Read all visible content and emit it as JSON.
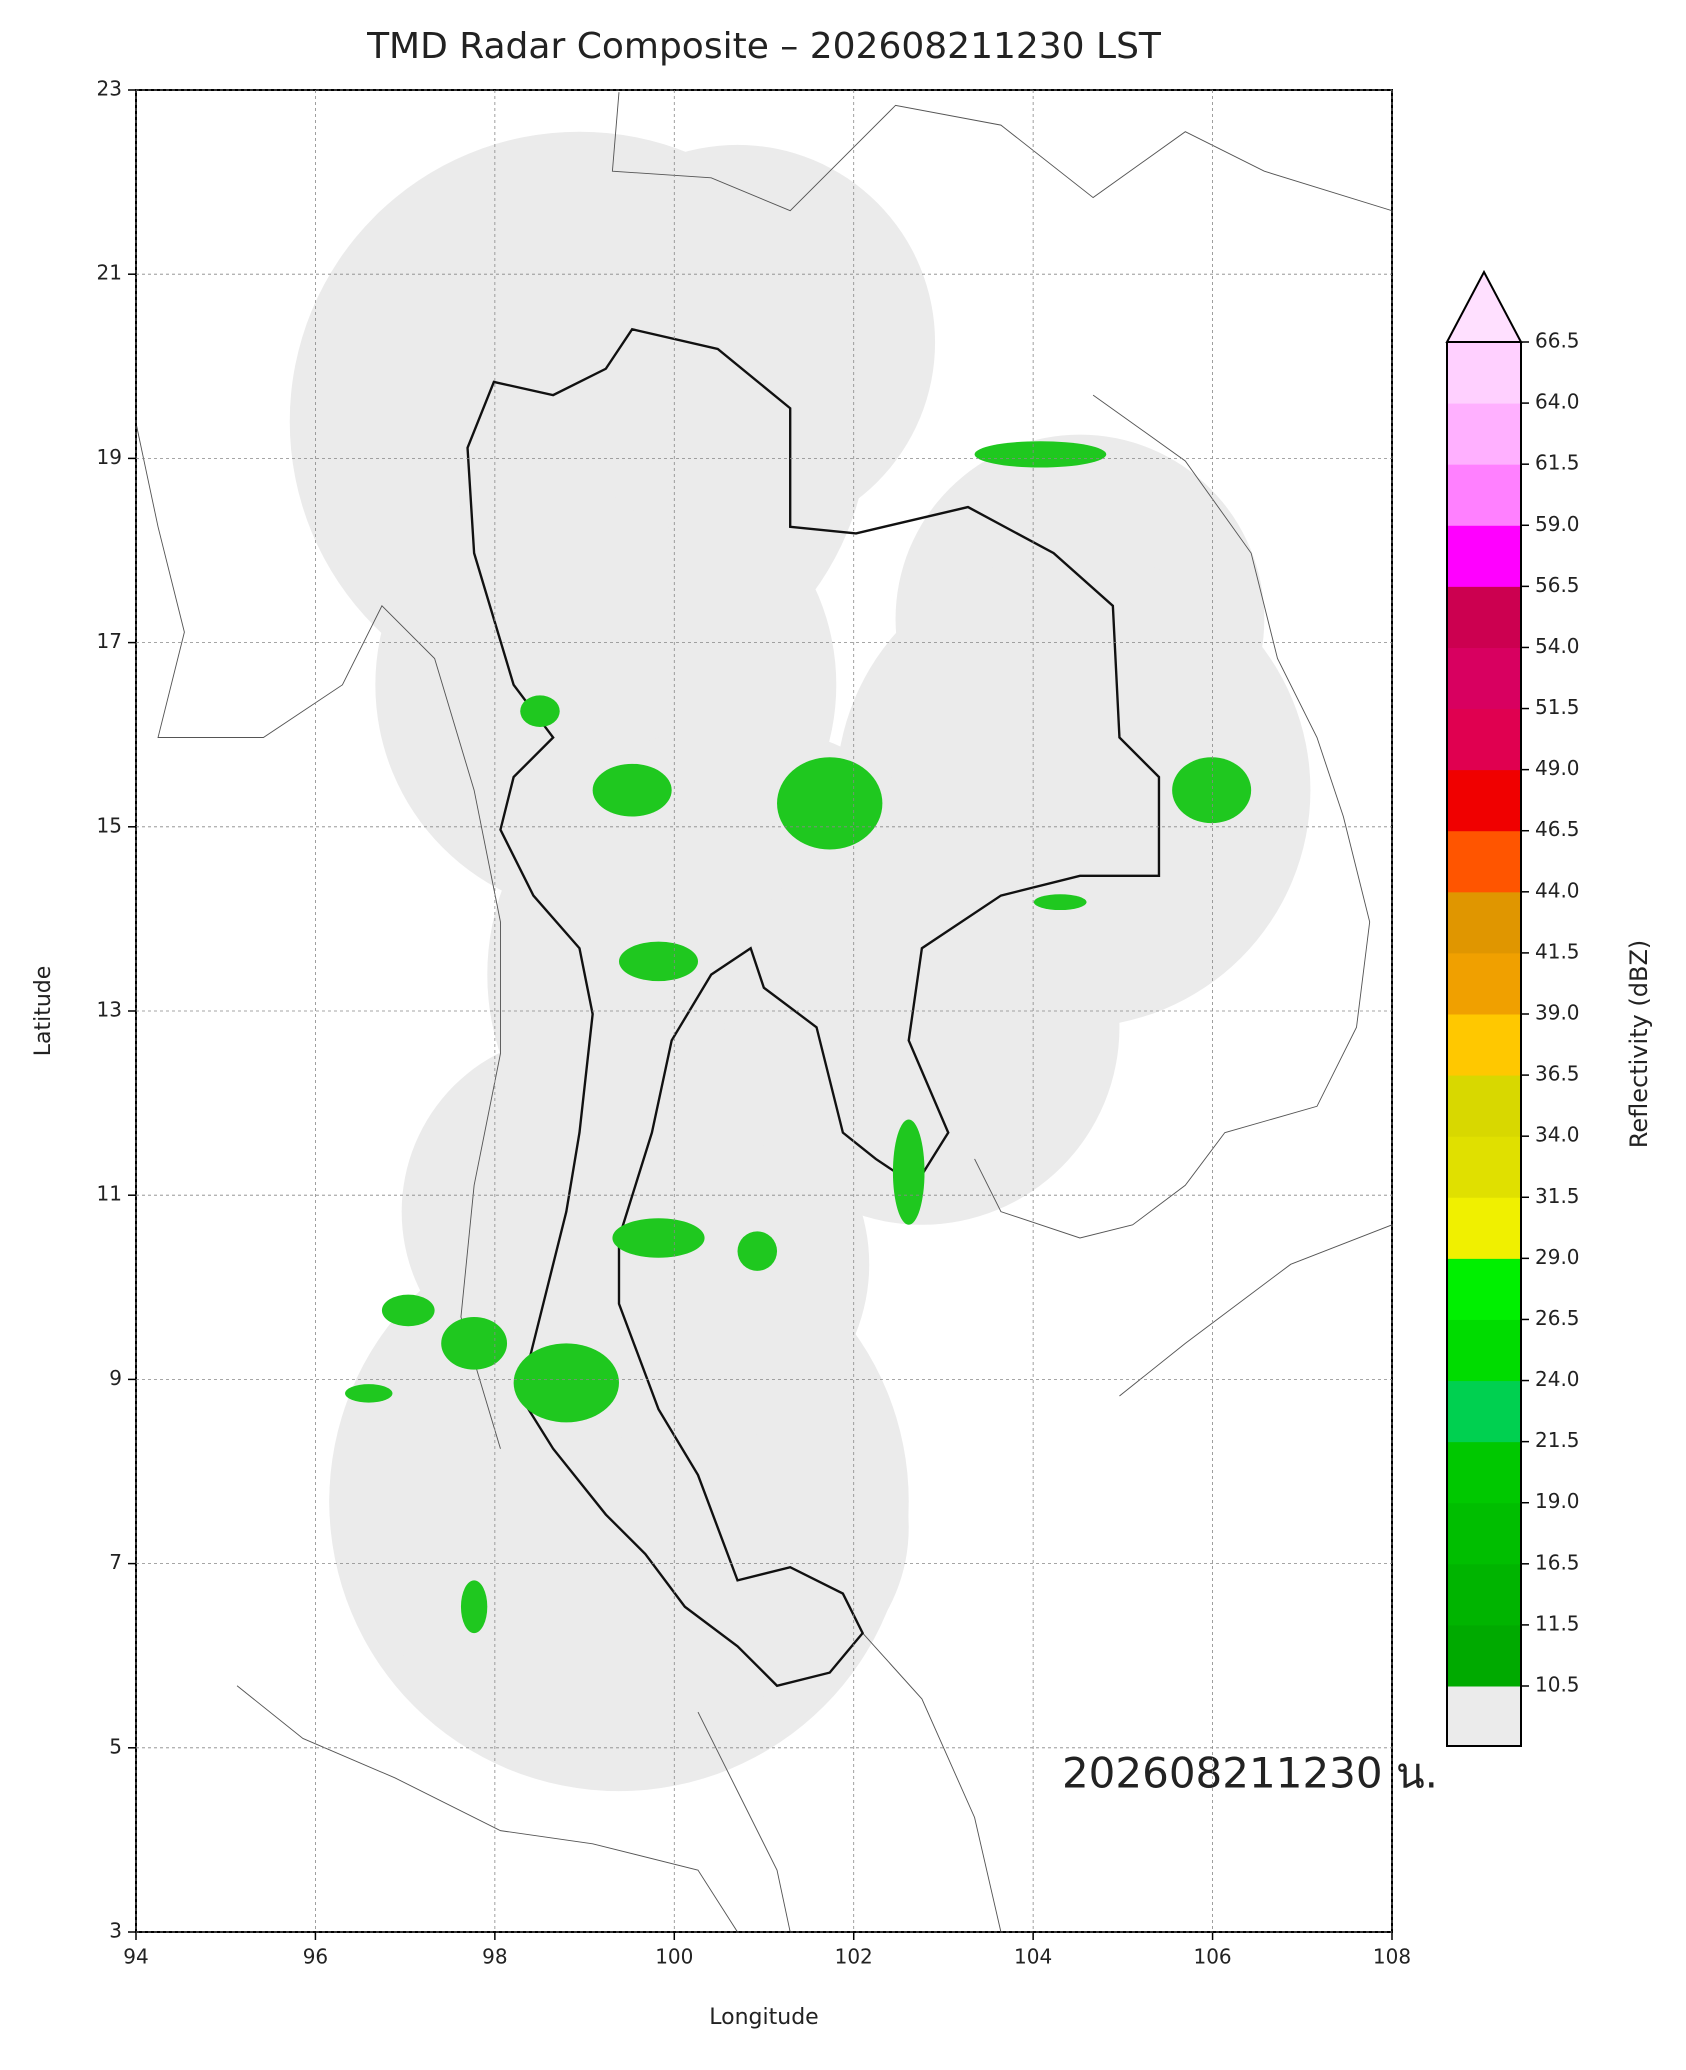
{
  "chart_data": {
    "type": "radar-map",
    "title": "TMD Radar Composite – 202608211230 LST",
    "xlabel": "Longitude",
    "ylabel": "Latitude",
    "annotation": "202608211230 น.",
    "xlim": [
      94,
      108
    ],
    "ylim": [
      3,
      23
    ],
    "xticks": [
      94,
      96,
      98,
      100,
      102,
      104,
      106,
      108
    ],
    "yticks": [
      3,
      5,
      7,
      9,
      11,
      13,
      15,
      17,
      19,
      21,
      23
    ],
    "grid": true,
    "colorbar": {
      "label": "Reflectivity (dBZ)",
      "ticks": [
        10.5,
        11.5,
        16.5,
        {
          "value": 19,
          "label": "19.0"
        },
        21.5,
        {
          "value": 24,
          "label": "24.0"
        },
        26.5,
        {
          "value": 29,
          "label": "29.0"
        },
        31.5,
        {
          "value": 34,
          "label": "34.0"
        },
        36.5,
        {
          "value": 39,
          "label": "39.0"
        },
        41.5,
        {
          "value": 44,
          "label": "44.0"
        },
        46.5,
        {
          "value": 49,
          "label": "49.0"
        },
        51.5,
        {
          "value": 54,
          "label": "54.0"
        },
        56.5,
        {
          "value": 59,
          "label": "59.0"
        },
        61.5,
        {
          "value": 64,
          "label": "64.0"
        },
        66.5
      ],
      "colors": [
        "#00aa00",
        "#00b400",
        "#00be00",
        "#00c800",
        "#00d050",
        "#00dc00",
        "#00f000",
        "#f0f000",
        "#e0e000",
        "#d8d800",
        "#ffc800",
        "#f0a000",
        "#e09600",
        "#ff5500",
        "#f00000",
        "#e00050",
        "#d80060",
        "#cc0050",
        "#ff00ff",
        "#ff80ff",
        "#ffb0ff",
        "#ffd0ff"
      ],
      "under_color": "#ebebeb",
      "over_color": "#ffe0ff"
    }
  }
}
